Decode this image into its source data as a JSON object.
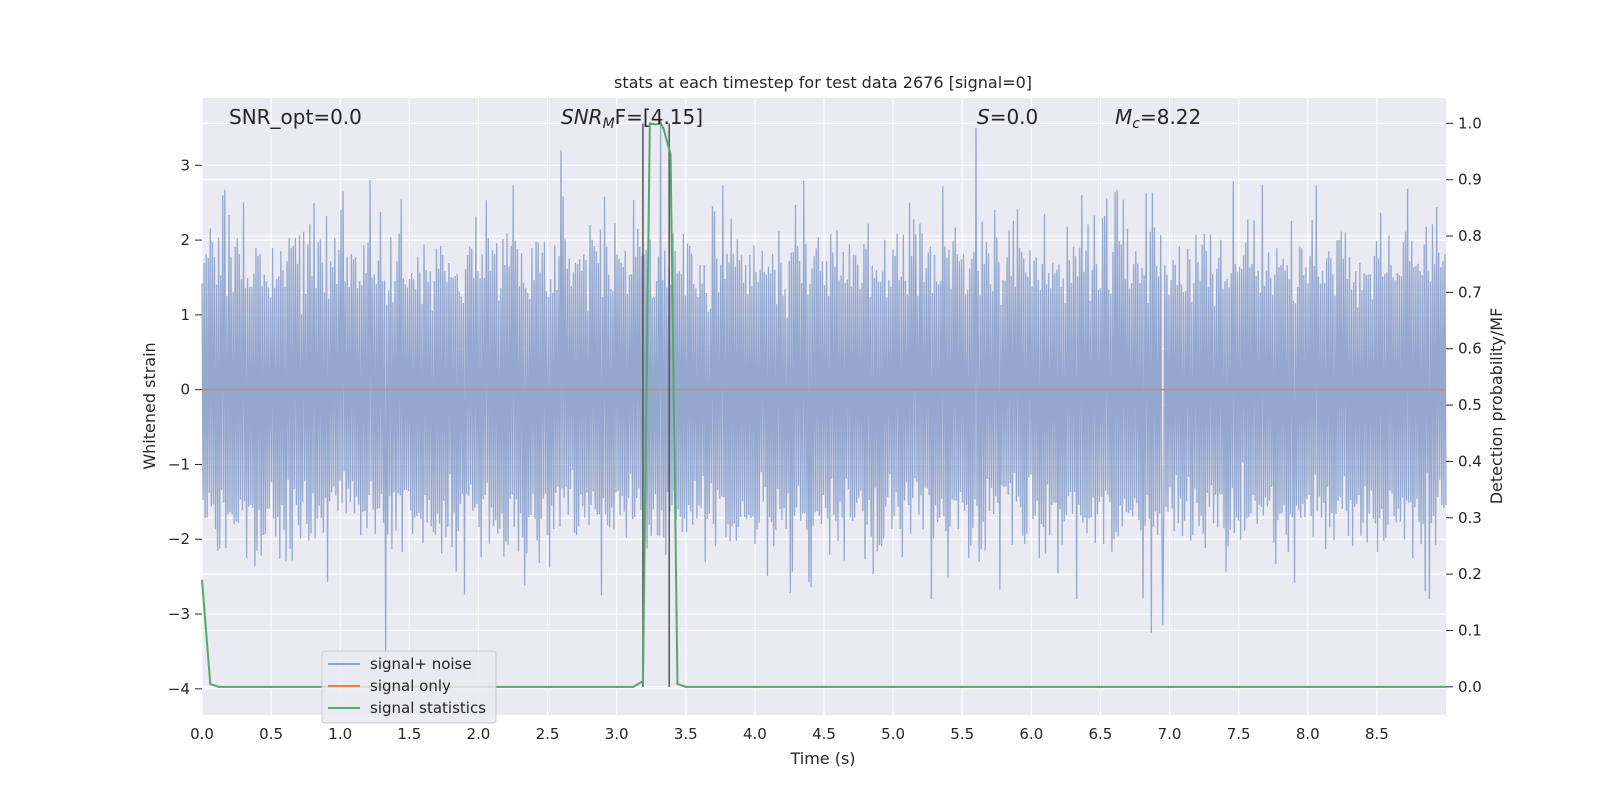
{
  "chart_data": {
    "type": "line",
    "title": "stats at each timestep for test data 2676 [signal=0]",
    "xlabel": "Time (s)",
    "ylabel": "Whitened strain",
    "ylabel_right": "Detection probability/MF",
    "xlim": [
      0.0,
      9.0
    ],
    "ylim": [
      -4.35,
      3.9
    ],
    "ylim_right": [
      -0.05,
      1.045
    ],
    "xticks": [
      "0.0",
      "0.5",
      "1.0",
      "1.5",
      "2.0",
      "2.5",
      "3.0",
      "3.5",
      "4.0",
      "4.5",
      "5.0",
      "5.5",
      "6.0",
      "6.5",
      "7.0",
      "7.5",
      "8.0",
      "8.5"
    ],
    "yticks": [
      "3",
      "2",
      "1",
      "0",
      "−1",
      "−2",
      "−3",
      "−4"
    ],
    "yticks_right": [
      "1.0",
      "0.9",
      "0.8",
      "0.7",
      "0.6",
      "0.5",
      "0.4",
      "0.3",
      "0.2",
      "0.1",
      "0.0"
    ],
    "annotations": {
      "snr_opt": "SNR_opt=0.0",
      "snr_mf_prefix": "SNR",
      "snr_mf_sub": "M",
      "snr_mf_suffix": "F=[4.15]",
      "s_var": "S",
      "s_value": "=0.0",
      "mc_var": "M",
      "mc_sub": "c",
      "mc_value": "=8.22"
    },
    "vlines": [
      3.19,
      3.38
    ],
    "series": [
      {
        "name": "signal+ noise",
        "color": "#8fa4cd",
        "description": "whitened noise, ~Gaussian, amplitude mostly within [-2, 2.5], peaks to 3.5 and -3.6",
        "noise_seed": 2676,
        "notable_peaks": [
          [
            3.32,
            3.6
          ],
          [
            5.6,
            3.5
          ],
          [
            2.6,
            3.2
          ],
          [
            1.33,
            -3.6
          ],
          [
            6.87,
            -3.25
          ],
          [
            6.95,
            -3.15
          ]
        ]
      },
      {
        "name": "signal only",
        "color": "#dd8452",
        "x": [
          0.0,
          9.0
        ],
        "y": [
          0.0,
          0.0
        ]
      },
      {
        "name": "signal statistics",
        "color": "#55a868",
        "axis": "right",
        "x": [
          0.0,
          0.06,
          0.12,
          3.12,
          3.19,
          3.24,
          3.28,
          3.32,
          3.34,
          3.39,
          3.44,
          3.5,
          9.0
        ],
        "y": [
          0.19,
          0.005,
          0.0,
          0.0,
          0.01,
          1.0,
          0.998,
          1.0,
          0.99,
          0.945,
          0.005,
          0.0,
          0.0
        ]
      }
    ],
    "legend": {
      "placement": "lower-left",
      "entries": [
        "signal+ noise",
        "signal only",
        "signal statistics"
      ]
    },
    "grid": true,
    "colors": {
      "plot_bg": "#eaeaf2",
      "grid": "#ffffff",
      "vline": "#555555"
    }
  }
}
